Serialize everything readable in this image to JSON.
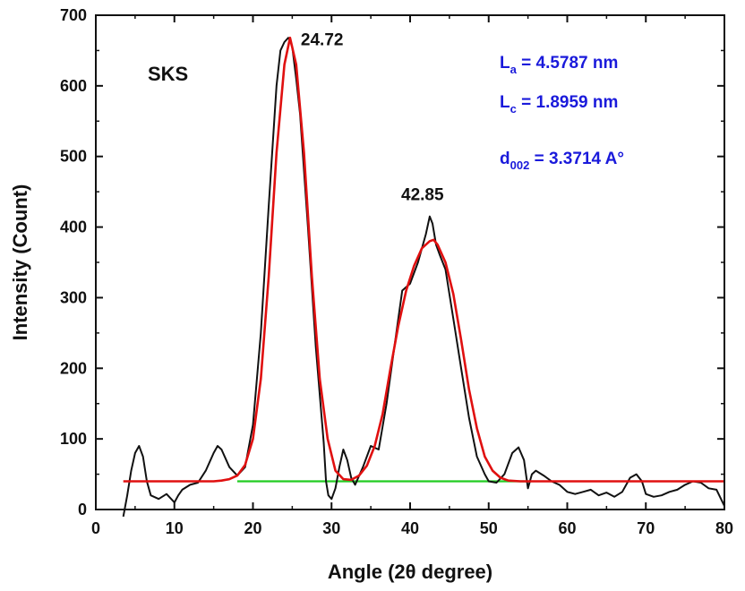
{
  "chart_data": {
    "type": "line",
    "xlabel": "Angle (2θ degree)",
    "ylabel": "Intensity (Count)",
    "xlim": [
      0,
      80
    ],
    "ylim": [
      0,
      700
    ],
    "x_ticks": [
      0,
      10,
      20,
      30,
      40,
      50,
      60,
      70,
      80
    ],
    "y_ticks": [
      0,
      100,
      200,
      300,
      400,
      500,
      600,
      700
    ],
    "sample_label": "SKS",
    "peak_labels": [
      {
        "text": "24.72",
        "x": 24.72,
        "y": 665
      },
      {
        "text": "42.85",
        "x": 42.85,
        "y": 415
      }
    ],
    "annotations": [
      {
        "main": "L",
        "sub": "a",
        "rest": " = 4.5787 nm"
      },
      {
        "main": "L",
        "sub": "c",
        "rest": " = 1.8959 nm"
      },
      {
        "main": "d",
        "sub": "002",
        "rest": " = 3.3714 A°"
      }
    ],
    "colors": {
      "measured": "#111111",
      "fit": "#e01010",
      "baseline_segment": "#22cc22",
      "annotation": "#1a1adb"
    },
    "series": [
      {
        "style": "measured",
        "x": [
          3.5,
          4.0,
          4.5,
          5.0,
          5.5,
          6.0,
          6.5,
          7.0,
          8.0,
          9.0,
          10.0,
          10.5,
          11.0,
          12.0,
          13.0,
          14.0,
          15.0,
          15.5,
          16.0,
          17.0,
          18.0,
          19.0,
          20.0,
          21.0,
          22.0,
          23.0,
          23.5,
          24.0,
          24.5,
          24.72,
          25.0,
          25.5,
          26.0,
          27.0,
          28.0,
          29.0,
          29.3,
          29.6,
          30.0,
          30.5,
          31.0,
          31.5,
          32.0,
          32.5,
          33.0,
          34.0,
          35.0,
          36.0,
          37.0,
          38.0,
          39.0,
          40.0,
          41.0,
          42.0,
          42.5,
          42.85,
          43.3,
          43.8,
          44.5,
          45.5,
          46.5,
          47.5,
          48.5,
          49.5,
          50.0,
          51.0,
          52.0,
          53.0,
          53.8,
          54.5,
          55.0,
          55.5,
          56.0,
          57.0,
          58.0,
          59.0,
          60.0,
          61.0,
          62.0,
          63.0,
          64.0,
          65.0,
          66.0,
          67.0,
          68.0,
          68.8,
          69.5,
          70.0,
          71.0,
          72.0,
          73.0,
          74.0,
          75.0,
          76.0,
          77.0,
          78.0,
          79.0,
          80.0
        ],
        "y": [
          -10,
          20,
          55,
          80,
          90,
          75,
          40,
          20,
          15,
          22,
          10,
          20,
          28,
          35,
          38,
          55,
          80,
          90,
          85,
          60,
          48,
          60,
          120,
          250,
          430,
          600,
          650,
          662,
          668,
          665,
          655,
          610,
          560,
          400,
          230,
          95,
          40,
          20,
          15,
          30,
          60,
          85,
          70,
          45,
          35,
          60,
          90,
          85,
          150,
          230,
          310,
          320,
          350,
          390,
          415,
          405,
          375,
          360,
          340,
          270,
          200,
          130,
          75,
          50,
          40,
          38,
          50,
          80,
          88,
          70,
          30,
          50,
          55,
          48,
          40,
          35,
          25,
          22,
          25,
          28,
          20,
          24,
          18,
          25,
          45,
          50,
          40,
          22,
          18,
          20,
          25,
          28,
          35,
          40,
          38,
          30,
          28,
          5
        ]
      },
      {
        "style": "fit",
        "x": [
          3.5,
          5.0,
          8.0,
          10.0,
          12.0,
          14.0,
          15.0,
          16.0,
          17.0,
          18.0,
          19.0,
          20.0,
          21.0,
          22.0,
          23.0,
          24.0,
          24.72,
          25.5,
          26.5,
          27.5,
          28.5,
          29.5,
          30.5,
          31.5,
          32.5,
          33.5,
          34.5,
          35.5,
          36.5,
          37.5,
          38.5,
          39.5,
          40.5,
          41.5,
          42.5,
          43.0,
          43.5,
          44.5,
          45.5,
          46.5,
          47.5,
          48.5,
          49.5,
          50.5,
          51.5,
          52.5,
          54.0,
          56.0,
          60.0,
          65.0,
          70.0,
          75.0,
          80.0
        ],
        "y": [
          40,
          40,
          40,
          40,
          40,
          40,
          40,
          41,
          43,
          48,
          63,
          100,
          185,
          330,
          505,
          630,
          668,
          630,
          505,
          330,
          185,
          100,
          55,
          43,
          42,
          48,
          62,
          90,
          135,
          200,
          260,
          310,
          345,
          370,
          380,
          382,
          375,
          350,
          305,
          240,
          170,
          115,
          75,
          55,
          45,
          41,
          40,
          40,
          40,
          40,
          40,
          40,
          40
        ]
      },
      {
        "style": "baseline_segment",
        "x": [
          18.0,
          55.0
        ],
        "y": [
          40,
          40
        ]
      }
    ]
  }
}
